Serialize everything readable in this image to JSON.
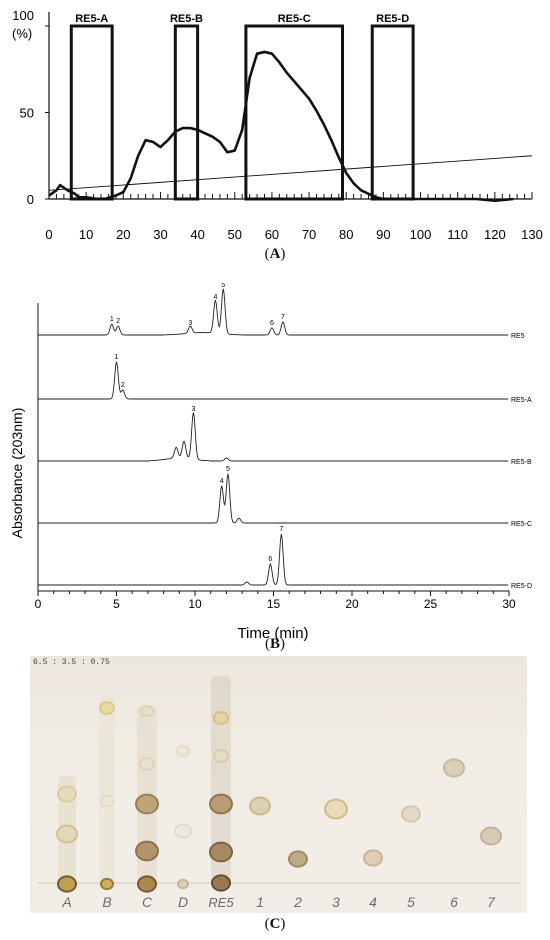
{
  "panel_a": {
    "y_tick_labels": [
      "100",
      "50",
      "0"
    ],
    "y_unit": "(%)",
    "x_tick_labels": [
      "0",
      "10",
      "20",
      "30",
      "40",
      "50",
      "60",
      "70",
      "80",
      "90",
      "100",
      "110",
      "120",
      "130"
    ],
    "fractions": [
      {
        "label": "RE5-A",
        "start": 6,
        "end": 17
      },
      {
        "label": "RE5-B",
        "start": 34,
        "end": 40
      },
      {
        "label": "RE5-C",
        "start": 53,
        "end": 79
      },
      {
        "label": "RE5-D",
        "start": 87,
        "end": 98
      }
    ],
    "caption": "A",
    "chart_data": {
      "type": "line",
      "xlim": [
        0,
        130
      ],
      "ylim": [
        0,
        100
      ],
      "series": [
        {
          "x": [
            0,
            2,
            3,
            5,
            7,
            8,
            10,
            13,
            15,
            18,
            20,
            22,
            24,
            26,
            28,
            30,
            32,
            34,
            36,
            38,
            40,
            42,
            44,
            46,
            48,
            50,
            52,
            54,
            56,
            58,
            60,
            62,
            64,
            66,
            68,
            70,
            72,
            74,
            76,
            78,
            80,
            82,
            84,
            86,
            88,
            90,
            100,
            110,
            115,
            120,
            125
          ],
          "y": [
            2,
            5,
            8,
            5,
            3,
            1,
            1,
            0,
            0,
            2,
            4,
            12,
            25,
            34,
            33,
            30,
            34,
            39,
            41,
            41,
            40,
            38,
            36,
            33,
            27,
            28,
            40,
            70,
            84,
            85,
            84,
            79,
            73,
            68,
            63,
            58,
            51,
            43,
            34,
            24,
            15,
            9,
            5,
            3,
            1,
            0,
            0,
            0,
            0,
            -1,
            0
          ]
        },
        {
          "x": [
            0,
            130
          ],
          "y": [
            5,
            25
          ]
        }
      ]
    }
  },
  "panel_b": {
    "ylabel": "Absorbance (203nm)",
    "xlabel": "Time (min)",
    "x_tick_labels": [
      "0",
      "5",
      "10",
      "15",
      "20",
      "25",
      "30"
    ],
    "caption": "B",
    "chart_data": {
      "type": "line",
      "xlim": [
        0,
        30
      ],
      "series": [
        {
          "name": "RE5",
          "peaks": [
            {
              "label": "1",
              "t": 4.7,
              "h": 0.18
            },
            {
              "label": "2",
              "t": 5.1,
              "h": 0.15
            },
            {
              "label": "3",
              "t": 9.7,
              "h": 0.12
            },
            {
              "label": "4",
              "t": 11.3,
              "h": 0.55
            },
            {
              "label": "5",
              "t": 11.8,
              "h": 0.75
            },
            {
              "label": "6",
              "t": 14.9,
              "h": 0.12
            },
            {
              "label": "7",
              "t": 15.6,
              "h": 0.22
            }
          ]
        },
        {
          "name": "RE5-A",
          "peaks": [
            {
              "label": "1",
              "t": 5.0,
              "h": 0.62
            },
            {
              "label": "2",
              "t": 5.4,
              "h": 0.15
            }
          ]
        },
        {
          "name": "RE5-B",
          "peaks": [
            {
              "label": "",
              "t": 8.8,
              "h": 0.18
            },
            {
              "label": "",
              "t": 9.3,
              "h": 0.28
            },
            {
              "label": "3",
              "t": 9.9,
              "h": 0.78
            },
            {
              "label": "",
              "t": 12.0,
              "h": 0.05
            }
          ]
        },
        {
          "name": "RE5-C",
          "peaks": [
            {
              "label": "4",
              "t": 11.7,
              "h": 0.62
            },
            {
              "label": "5",
              "t": 12.1,
              "h": 0.82
            },
            {
              "label": "",
              "t": 12.8,
              "h": 0.08
            }
          ]
        },
        {
          "name": "RE5-D",
          "peaks": [
            {
              "label": "",
              "t": 13.3,
              "h": 0.05
            },
            {
              "label": "6",
              "t": 14.8,
              "h": 0.35
            },
            {
              "label": "7",
              "t": 15.5,
              "h": 0.85
            }
          ]
        }
      ]
    }
  },
  "panel_c": {
    "solvent_label": "6.5 : 3.5 : 0.75",
    "lane_labels": [
      "A",
      "B",
      "C",
      "D",
      "RE5",
      "1",
      "2",
      "3",
      "4",
      "5",
      "6",
      "7"
    ],
    "caption": "C"
  }
}
